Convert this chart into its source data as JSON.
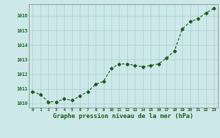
{
  "x": [
    0,
    1,
    2,
    3,
    4,
    5,
    6,
    7,
    8,
    9,
    10,
    11,
    12,
    13,
    14,
    15,
    16,
    17,
    18,
    19,
    20,
    21,
    22,
    23
  ],
  "y": [
    1010.8,
    1010.6,
    1010.1,
    1010.1,
    1010.3,
    1010.2,
    1010.5,
    1010.8,
    1011.3,
    1011.5,
    1012.4,
    1012.7,
    1012.7,
    1012.6,
    1012.5,
    1012.6,
    1012.7,
    1013.1,
    1013.6,
    1015.1,
    1015.6,
    1015.8,
    1016.2,
    1016.5
  ],
  "line_color": "#1a5c1a",
  "marker": "D",
  "marker_size": 2.2,
  "line_width": 0.9,
  "bg_color": "#cce8e8",
  "grid_color": "#aacccc",
  "xlabel": "Graphe pression niveau de la mer (hPa)",
  "xlabel_color": "#1a5c1a",
  "xlabel_fontsize": 6.5,
  "ylim": [
    1009.7,
    1016.8
  ],
  "xlim": [
    -0.5,
    23.5
  ],
  "xtick_fontsize": 4.5,
  "ytick_fontsize": 4.8,
  "yticks": [
    1010,
    1011,
    1012,
    1013,
    1014,
    1015,
    1016
  ]
}
